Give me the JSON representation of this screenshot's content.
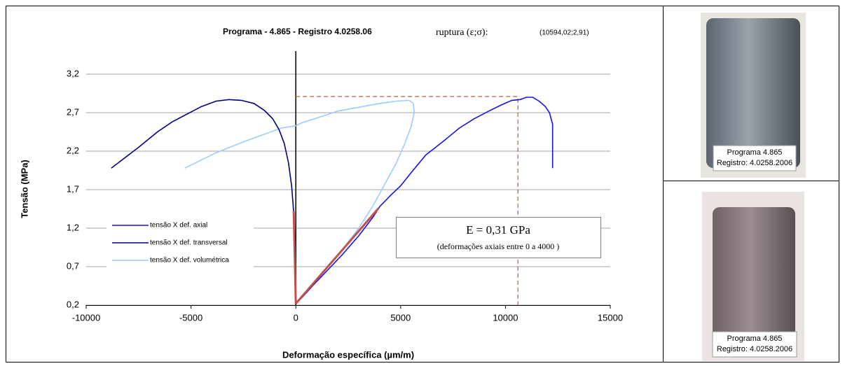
{
  "chart_data": {
    "type": "line",
    "title": "Programa - 4.865 - Registro  4.0258.06",
    "rupture_caption": "ruptura (ε;σ):",
    "rupture_point": {
      "x": 10594.02,
      "y": 2.91,
      "label": "(10594,02;2,91)",
      "color": "#b5603a"
    },
    "x_label": "Deformação específica (µm/m)",
    "y_label": "Tensão (MPa)",
    "xlim": [
      -10000,
      15000
    ],
    "xticks": [
      -10000,
      -5000,
      0,
      5000,
      10000,
      15000
    ],
    "ylim": [
      0.2,
      3.5
    ],
    "yticks": [
      {
        "value": 0.2,
        "label": "0,2"
      },
      {
        "value": 0.7,
        "label": "0,7"
      },
      {
        "value": 1.2,
        "label": "1,2"
      },
      {
        "value": 1.7,
        "label": "1,7"
      },
      {
        "value": 2.2,
        "label": "2,2"
      },
      {
        "value": 2.7,
        "label": "2,7"
      },
      {
        "value": 3.2,
        "label": "3,2"
      }
    ],
    "grid": true,
    "series": [
      {
        "name": "tensão X def. axial",
        "color": "#1414e6",
        "x": [
          0,
          300,
          800,
          1500,
          2200,
          3000,
          3700,
          4000,
          4500,
          5000,
          5500,
          6200,
          7000,
          7800,
          8500,
          9200,
          9800,
          10300,
          10700,
          11000,
          11300,
          11600,
          11900,
          12100,
          12250,
          12250
        ],
        "values": [
          0.22,
          0.3,
          0.45,
          0.65,
          0.85,
          1.1,
          1.35,
          1.48,
          1.62,
          1.75,
          1.92,
          2.15,
          2.32,
          2.5,
          2.62,
          2.72,
          2.8,
          2.86,
          2.87,
          2.9,
          2.9,
          2.85,
          2.78,
          2.7,
          2.55,
          1.98
        ]
      },
      {
        "name": "tensão X def. transversal",
        "color": "#000080",
        "x": [
          0,
          -50,
          -100,
          -200,
          -350,
          -550,
          -800,
          -1100,
          -1500,
          -2000,
          -2600,
          -3200,
          -3800,
          -4500,
          -5200,
          -5900,
          -6600,
          -7500,
          -8800
        ],
        "values": [
          0.22,
          0.8,
          1.4,
          1.75,
          2.05,
          2.3,
          2.48,
          2.62,
          2.73,
          2.82,
          2.86,
          2.87,
          2.85,
          2.78,
          2.68,
          2.58,
          2.45,
          2.25,
          1.98
        ]
      },
      {
        "name": "tensão X def. volumétrica",
        "color": "#99ccff",
        "x": [
          0,
          700,
          1500,
          2300,
          3000,
          3700,
          4300,
          4800,
          5200,
          5500,
          5650,
          5600,
          5400,
          4800,
          4000,
          3000,
          2000,
          1000,
          300,
          0,
          -700,
          -1500,
          -2500,
          -3800,
          -5300
        ],
        "values": [
          0.22,
          0.45,
          0.7,
          0.95,
          1.2,
          1.5,
          1.8,
          2.05,
          2.3,
          2.52,
          2.7,
          2.82,
          2.86,
          2.85,
          2.82,
          2.77,
          2.72,
          2.63,
          2.57,
          2.53,
          2.5,
          2.42,
          2.32,
          2.18,
          1.98
        ]
      }
    ],
    "fit_lines": [
      {
        "color": "#c0504d",
        "x": [
          0,
          3950
        ],
        "values": [
          0.22,
          1.46
        ]
      },
      {
        "color": "#c0504d",
        "x": [
          0,
          -100
        ],
        "values": [
          0.22,
          1.42
        ]
      }
    ],
    "annotation": {
      "lines": [
        "E = 0,31 GPa",
        "(deformações axiais entre 0 a 4000 )"
      ]
    }
  },
  "photos": [
    {
      "label_lines": [
        "Programa 4.865",
        "Registro: 4.0258.2006"
      ]
    },
    {
      "label_lines": [
        "Programa 4.865",
        "Registro: 4.0258.2006"
      ]
    }
  ]
}
